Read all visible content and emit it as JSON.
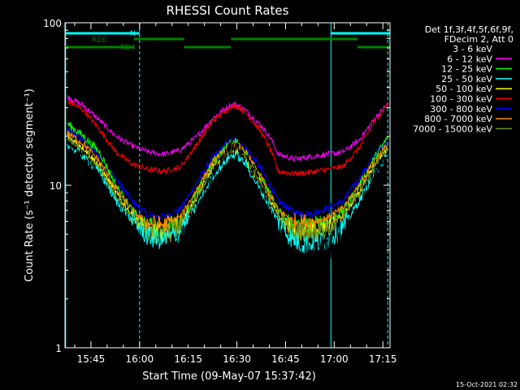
{
  "chart_data": {
    "type": "line",
    "title": "RHESSI Count Rates",
    "xlabel": "Start Time (09-May-07 15:37:42)",
    "ylabel": "Count Rate (s⁻¹ detector segment⁻¹)",
    "y_scale": "log",
    "ylim": [
      1,
      100
    ],
    "xlim_minutes": [
      -0.7,
      99.5
    ],
    "x_ticks": [
      {
        "label": "15:45",
        "minute": 7.3
      },
      {
        "label": "16:00",
        "minute": 22.3
      },
      {
        "label": "16:15",
        "minute": 37.3
      },
      {
        "label": "16:30",
        "minute": 52.3
      },
      {
        "label": "16:45",
        "minute": 67.3
      },
      {
        "label": "17:00",
        "minute": 82.3
      },
      {
        "label": "17:15",
        "minute": 97.3
      }
    ],
    "y_ticks": [
      {
        "label": "1",
        "value": 1
      },
      {
        "label": "10",
        "value": 10
      },
      {
        "label": "100",
        "value": 100
      }
    ],
    "legend": {
      "placement": "right",
      "header": [
        "Det 1f,3f,4f,5f,6f,9f,",
        "FDecim 2, Att 0"
      ],
      "entries": [
        {
          "label": "3 - 6 keV",
          "color": "#000000"
        },
        {
          "label": "6 - 12 keV",
          "color": "#ff00ff"
        },
        {
          "label": "12 - 25 keV",
          "color": "#00ff00"
        },
        {
          "label": "25 - 50 keV",
          "color": "#00ffff"
        },
        {
          "label": "50 - 100 keV",
          "color": "#ffff00"
        },
        {
          "label": "100 - 300 keV",
          "color": "#ff0000"
        },
        {
          "label": "300 - 800 keV",
          "color": "#0000ff"
        },
        {
          "label": "800 - 7000 keV",
          "color": "#ff8c00"
        },
        {
          "label": "7000 - 15000 keV",
          "color": "#6b8e23"
        }
      ]
    },
    "series": [
      {
        "label": "3 - 6 keV",
        "color": "#000000",
        "noise": 0.1,
        "points": [
          [
            0,
            18
          ],
          [
            5,
            15
          ],
          [
            10,
            11
          ],
          [
            15,
            7
          ],
          [
            20,
            5
          ],
          [
            25,
            3.6
          ],
          [
            30,
            3.4
          ],
          [
            35,
            4.2
          ],
          [
            40,
            7
          ],
          [
            45,
            12
          ],
          [
            50,
            17
          ],
          [
            52,
            17.5
          ],
          [
            55,
            15
          ],
          [
            60,
            10
          ],
          [
            65,
            5
          ],
          [
            70,
            3.6
          ],
          [
            75,
            3.6
          ],
          [
            80,
            4
          ],
          [
            85,
            4.5
          ],
          [
            90,
            7
          ],
          [
            95,
            12
          ],
          [
            99,
            16
          ]
        ]
      },
      {
        "label": "6 - 12 keV",
        "color": "#ff00ff",
        "noise": 0.04,
        "points": [
          [
            0,
            35
          ],
          [
            5,
            31
          ],
          [
            10,
            25
          ],
          [
            15,
            20
          ],
          [
            20,
            17.5
          ],
          [
            25,
            16
          ],
          [
            30,
            15.5
          ],
          [
            35,
            16.5
          ],
          [
            40,
            20
          ],
          [
            45,
            26
          ],
          [
            50,
            31
          ],
          [
            52,
            31.5
          ],
          [
            55,
            29
          ],
          [
            60,
            23
          ],
          [
            63,
            19
          ],
          [
            65,
            15.5
          ],
          [
            70,
            14.5
          ],
          [
            75,
            15
          ],
          [
            80,
            15.5
          ],
          [
            85,
            16
          ],
          [
            90,
            19
          ],
          [
            95,
            26
          ],
          [
            99,
            32
          ]
        ]
      },
      {
        "label": "12 - 25 keV",
        "color": "#00ff00",
        "noise": 0.06,
        "points": [
          [
            0,
            24
          ],
          [
            5,
            20
          ],
          [
            10,
            16
          ],
          [
            15,
            10
          ],
          [
            20,
            7
          ],
          [
            25,
            5.5
          ],
          [
            30,
            5.4
          ],
          [
            35,
            6
          ],
          [
            40,
            9
          ],
          [
            45,
            14
          ],
          [
            50,
            18
          ],
          [
            52,
            18.5
          ],
          [
            55,
            16
          ],
          [
            60,
            11
          ],
          [
            65,
            7
          ],
          [
            70,
            5.5
          ],
          [
            75,
            5.5
          ],
          [
            80,
            6
          ],
          [
            85,
            7
          ],
          [
            90,
            10
          ],
          [
            95,
            15
          ],
          [
            99,
            20
          ]
        ]
      },
      {
        "label": "25 - 50 keV",
        "color": "#00ffff",
        "noise": 0.06,
        "points": [
          [
            0,
            18
          ],
          [
            5,
            15
          ],
          [
            10,
            12
          ],
          [
            15,
            8
          ],
          [
            20,
            6
          ],
          [
            25,
            4.8
          ],
          [
            30,
            4.6
          ],
          [
            35,
            5.2
          ],
          [
            40,
            7.5
          ],
          [
            45,
            11.5
          ],
          [
            50,
            15
          ],
          [
            52,
            15.5
          ],
          [
            55,
            13.5
          ],
          [
            60,
            9
          ],
          [
            65,
            6
          ],
          [
            70,
            4.5
          ],
          [
            75,
            4.3
          ],
          [
            80,
            4.6
          ],
          [
            85,
            5.5
          ],
          [
            90,
            8
          ],
          [
            95,
            12
          ],
          [
            99,
            15.5
          ]
        ]
      },
      {
        "label": "50 - 100 keV",
        "color": "#ffff00",
        "noise": 0.05,
        "points": [
          [
            0,
            20
          ],
          [
            5,
            17
          ],
          [
            10,
            13
          ],
          [
            15,
            9
          ],
          [
            20,
            6.5
          ],
          [
            25,
            5.2
          ],
          [
            30,
            5.1
          ],
          [
            35,
            5.8
          ],
          [
            40,
            8.5
          ],
          [
            45,
            13
          ],
          [
            50,
            16
          ],
          [
            52,
            16.5
          ],
          [
            55,
            14.5
          ],
          [
            60,
            10
          ],
          [
            65,
            6.5
          ],
          [
            70,
            5.2
          ],
          [
            75,
            5.1
          ],
          [
            80,
            5.6
          ],
          [
            85,
            6.5
          ],
          [
            90,
            9
          ],
          [
            95,
            13.5
          ],
          [
            99,
            17
          ]
        ]
      },
      {
        "label": "100 - 300 keV",
        "color": "#ff0000",
        "noise": 0.04,
        "points": [
          [
            0,
            33
          ],
          [
            5,
            29
          ],
          [
            10,
            22
          ],
          [
            15,
            16
          ],
          [
            20,
            13.5
          ],
          [
            25,
            12.5
          ],
          [
            30,
            12.2
          ],
          [
            35,
            13
          ],
          [
            40,
            18
          ],
          [
            45,
            25
          ],
          [
            50,
            30
          ],
          [
            52,
            31
          ],
          [
            55,
            28
          ],
          [
            60,
            21
          ],
          [
            63,
            16
          ],
          [
            65,
            12.2
          ],
          [
            70,
            11.8
          ],
          [
            75,
            12
          ],
          [
            80,
            12.5
          ],
          [
            85,
            13
          ],
          [
            90,
            17
          ],
          [
            95,
            25
          ],
          [
            99,
            32
          ]
        ]
      },
      {
        "label": "300 - 800 keV",
        "color": "#0000ff",
        "noise": 0.05,
        "points": [
          [
            0,
            22
          ],
          [
            5,
            19
          ],
          [
            10,
            15
          ],
          [
            15,
            11
          ],
          [
            20,
            8
          ],
          [
            25,
            6.5
          ],
          [
            30,
            6.4
          ],
          [
            35,
            7.2
          ],
          [
            40,
            10.5
          ],
          [
            45,
            15
          ],
          [
            50,
            18.5
          ],
          [
            52,
            19
          ],
          [
            55,
            17
          ],
          [
            60,
            12.5
          ],
          [
            65,
            8
          ],
          [
            70,
            6.8
          ],
          [
            75,
            6.7
          ],
          [
            80,
            7.2
          ],
          [
            85,
            8
          ],
          [
            90,
            11
          ],
          [
            95,
            15.5
          ],
          [
            99,
            19
          ]
        ]
      },
      {
        "label": "800 - 7000 keV",
        "color": "#ff8c00",
        "noise": 0.05,
        "points": [
          [
            0,
            21
          ],
          [
            5,
            18
          ],
          [
            10,
            14
          ],
          [
            15,
            9.5
          ],
          [
            20,
            7
          ],
          [
            25,
            5.8
          ],
          [
            30,
            5.7
          ],
          [
            35,
            6.4
          ],
          [
            40,
            9.5
          ],
          [
            45,
            14
          ],
          [
            50,
            17.5
          ],
          [
            52,
            18
          ],
          [
            55,
            16
          ],
          [
            60,
            11
          ],
          [
            65,
            7
          ],
          [
            70,
            6
          ],
          [
            75,
            5.9
          ],
          [
            80,
            6.3
          ],
          [
            85,
            7.2
          ],
          [
            90,
            10
          ],
          [
            95,
            14.5
          ],
          [
            99,
            18
          ]
        ]
      },
      {
        "label": "7000 - 15000 keV",
        "color": "#6b8e23",
        "noise": 0.06,
        "points": [
          [
            0,
            19
          ],
          [
            5,
            16
          ],
          [
            10,
            12.5
          ],
          [
            15,
            8.5
          ],
          [
            20,
            6.2
          ],
          [
            25,
            5
          ],
          [
            30,
            4.9
          ],
          [
            35,
            5.5
          ],
          [
            40,
            8.5
          ],
          [
            45,
            13
          ],
          [
            50,
            16.5
          ],
          [
            52,
            17
          ],
          [
            55,
            15
          ],
          [
            60,
            10
          ],
          [
            65,
            6.3
          ],
          [
            70,
            5.1
          ],
          [
            75,
            5
          ],
          [
            80,
            5.4
          ],
          [
            85,
            6.3
          ],
          [
            90,
            9
          ],
          [
            95,
            13.5
          ],
          [
            99,
            17
          ]
        ]
      }
    ],
    "status_bars": [
      {
        "label": "N",
        "color": "#00ffff",
        "level": "top",
        "intervals": [
          [
            -0.7,
            22.3
          ],
          [
            81.3,
            99.5
          ]
        ]
      },
      {
        "label": "RD0",
        "color": "#008000",
        "level": "mid",
        "intervals": [
          [
            20.5,
            36
          ],
          [
            50.5,
            89.5
          ]
        ]
      },
      {
        "label": "RD4",
        "color": "#008000",
        "level": "low",
        "intervals": [
          [
            -0.7,
            20.5
          ],
          [
            36,
            50.5
          ],
          [
            89.5,
            99.5
          ]
        ]
      }
    ],
    "vertical_markers": [
      {
        "minute": -0.5,
        "color": "#00ffff",
        "style": "solid"
      },
      {
        "minute": 22.3,
        "color": "#00ffff",
        "style": "dashed"
      },
      {
        "minute": 81.3,
        "color": "#00ffff",
        "style": "solid"
      },
      {
        "minute": 98.8,
        "color": "#00ffff",
        "style": "dashed"
      }
    ]
  },
  "footer": {
    "timestamp": "15-Oct-2021 02:32"
  }
}
